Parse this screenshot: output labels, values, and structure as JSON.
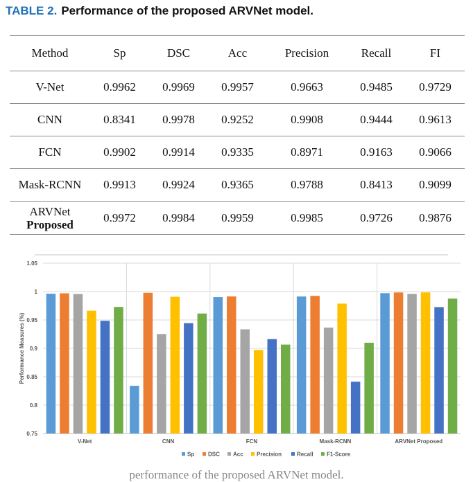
{
  "caption": {
    "label": "TABLE 2.",
    "title": "Performance of the proposed ARVNet model."
  },
  "table": {
    "headers": [
      "Method",
      "Sp",
      "DSC",
      "Acc",
      "Precision",
      "Recall",
      "FI"
    ],
    "rows": [
      {
        "method": "V-Net",
        "sub": "",
        "values": [
          "0.9962",
          "0.9969",
          "0.9957",
          "0.9663",
          "0.9485",
          "0.9729"
        ]
      },
      {
        "method": "CNN",
        "sub": "",
        "values": [
          "0.8341",
          "0.9978",
          "0.9252",
          "0.9908",
          "0.9444",
          "0.9613"
        ]
      },
      {
        "method": "FCN",
        "sub": "",
        "values": [
          "0.9902",
          "0.9914",
          "0.9335",
          "0.8971",
          "0.9163",
          "0.9066"
        ]
      },
      {
        "method": "Mask-RCNN",
        "sub": "",
        "values": [
          "0.9913",
          "0.9924",
          "0.9365",
          "0.9788",
          "0.8413",
          "0.9099"
        ]
      },
      {
        "method": "ARVNet",
        "sub": "Proposed",
        "values": [
          "0.9972",
          "0.9984",
          "0.9959",
          "0.9985",
          "0.9726",
          "0.9876"
        ]
      }
    ]
  },
  "chart_data": {
    "type": "bar",
    "title": "",
    "xlabel": "",
    "ylabel": "Performance Measures (%)",
    "ylim": [
      0.75,
      1.05
    ],
    "yticks": [
      "0.75",
      "0.8",
      "0.85",
      "0.9",
      "0.95",
      "1",
      "1.05"
    ],
    "grid": true,
    "legend_position": "bottom",
    "categories": [
      "V-Net",
      "CNN",
      "FCN",
      "Mask-RCNN",
      "ARVNet Proposed"
    ],
    "series": [
      {
        "name": "Sp",
        "color": "#5b9bd5",
        "values": [
          0.9962,
          0.8341,
          0.9902,
          0.9913,
          0.9972
        ]
      },
      {
        "name": "DSC",
        "color": "#ed7d31",
        "values": [
          0.9969,
          0.9978,
          0.9914,
          0.9924,
          0.9984
        ]
      },
      {
        "name": "Acc",
        "color": "#a5a5a5",
        "values": [
          0.9957,
          0.9252,
          0.9335,
          0.9365,
          0.9959
        ]
      },
      {
        "name": "Precision",
        "color": "#ffc000",
        "values": [
          0.9663,
          0.9908,
          0.8971,
          0.9788,
          0.9985
        ]
      },
      {
        "name": "Recall",
        "color": "#4472c4",
        "values": [
          0.9485,
          0.9444,
          0.9163,
          0.8413,
          0.9726
        ]
      },
      {
        "name": "F1-Score",
        "color": "#70ad47",
        "values": [
          0.9729,
          0.9613,
          0.9066,
          0.9099,
          0.9876
        ]
      }
    ]
  },
  "footer": {
    "text": "performance of the proposed ARVNet model."
  }
}
